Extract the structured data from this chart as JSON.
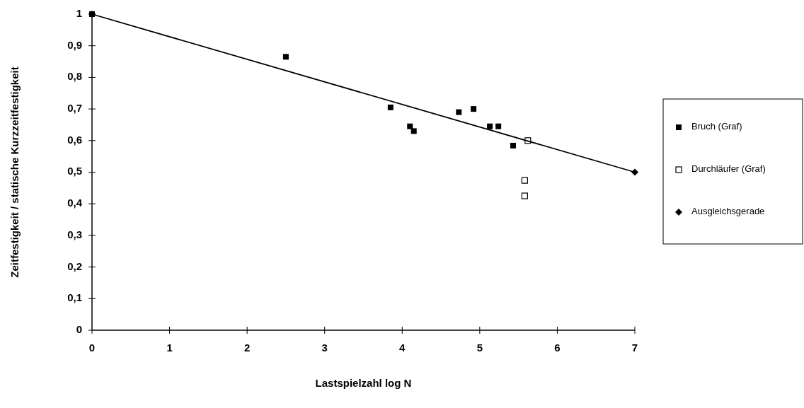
{
  "chart_data": {
    "type": "scatter",
    "xlabel": "Lastspielzahl log N",
    "ylabel": "Zeitfestigkeit / statische Kurzzeitfestigkeit",
    "xlim": [
      0,
      7
    ],
    "xticks": [
      0,
      1,
      2,
      3,
      4,
      5,
      6,
      7
    ],
    "ylim": [
      0,
      1
    ],
    "yticks": [
      0,
      {
        "value": 0.1,
        "label": "0,1"
      },
      {
        "value": 0.2,
        "label": "0,2"
      },
      {
        "value": 0.3,
        "label": "0,3"
      },
      {
        "value": 0.4,
        "label": "0,4"
      },
      {
        "value": 0.5,
        "label": "0,5"
      },
      {
        "value": 0.6,
        "label": "0,6"
      },
      {
        "value": 0.7,
        "label": "0,7"
      },
      {
        "value": 0.8,
        "label": "0,8"
      },
      {
        "value": 0.9,
        "label": "0,9"
      },
      1
    ],
    "grid": false,
    "legend": "right",
    "series": [
      {
        "name": "Bruch (Graf)",
        "type": "scatter",
        "marker": "square",
        "color": "#000000",
        "x": [
          0,
          2.5,
          3.85,
          4.1,
          4.15,
          4.73,
          4.92,
          5.13,
          5.24,
          5.43
        ],
        "values": [
          1.0,
          0.865,
          0.705,
          0.645,
          0.63,
          0.69,
          0.7,
          0.645,
          0.645,
          0.584
        ]
      },
      {
        "name": "Durchläufer (Graf)",
        "type": "scatter",
        "marker": "square-open",
        "color": "#000000",
        "x": [
          5.62,
          5.58,
          5.58
        ],
        "values": [
          0.6,
          0.474,
          0.425
        ]
      },
      {
        "name": "Ausgleichsgerade",
        "type": "line",
        "marker": "diamond",
        "color": "#000000",
        "x": [
          0,
          7
        ],
        "values": [
          1.0,
          0.5
        ]
      }
    ]
  }
}
